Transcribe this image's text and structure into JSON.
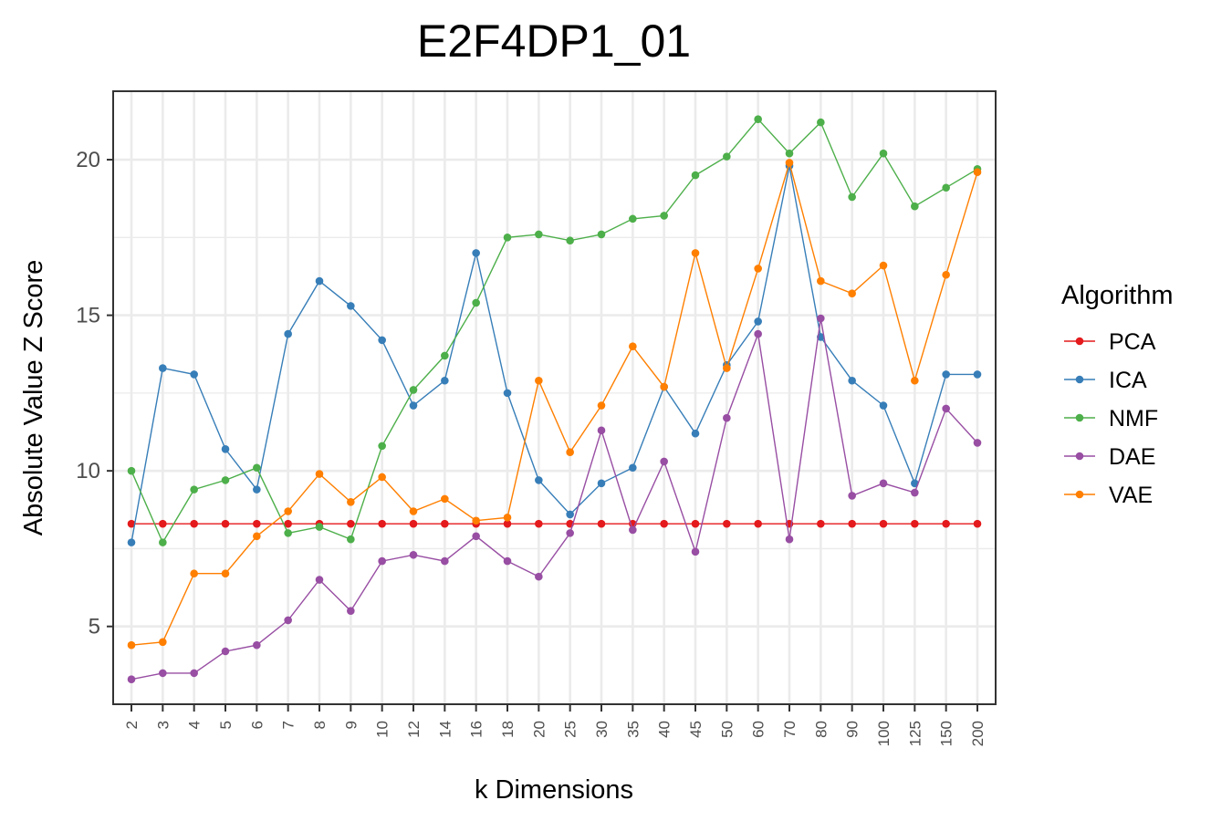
{
  "chart_data": {
    "type": "line",
    "title": "E2F4DP1_01",
    "xlabel": "k Dimensions",
    "ylabel": "Absolute Value Z Score",
    "categories": [
      "2",
      "3",
      "4",
      "5",
      "6",
      "7",
      "8",
      "9",
      "10",
      "12",
      "14",
      "16",
      "18",
      "20",
      "25",
      "30",
      "35",
      "40",
      "45",
      "50",
      "60",
      "70",
      "80",
      "90",
      "100",
      "125",
      "150",
      "200"
    ],
    "y_ticks": [
      5,
      10,
      15,
      20
    ],
    "ylim": [
      2.5,
      22.2
    ],
    "grid": true,
    "legend": {
      "title": "Algorithm",
      "placement": "right"
    },
    "series": [
      {
        "name": "PCA",
        "color": "#e41a1c",
        "values": [
          8.3,
          8.3,
          8.3,
          8.3,
          8.3,
          8.3,
          8.3,
          8.3,
          8.3,
          8.3,
          8.3,
          8.3,
          8.3,
          8.3,
          8.3,
          8.3,
          8.3,
          8.3,
          8.3,
          8.3,
          8.3,
          8.3,
          8.3,
          8.3,
          8.3,
          8.3,
          8.3,
          8.3
        ]
      },
      {
        "name": "ICA",
        "color": "#377eb8",
        "values": [
          7.7,
          13.3,
          13.1,
          10.7,
          9.4,
          14.4,
          16.1,
          15.3,
          14.2,
          12.1,
          12.9,
          17.0,
          12.5,
          9.7,
          8.6,
          9.6,
          10.1,
          12.7,
          11.2,
          13.4,
          14.8,
          19.8,
          14.3,
          12.9,
          12.1,
          9.6,
          13.1,
          13.1
        ]
      },
      {
        "name": "NMF",
        "color": "#4daf4a",
        "values": [
          10.0,
          7.7,
          9.4,
          9.7,
          10.1,
          8.0,
          8.2,
          7.8,
          10.8,
          12.6,
          13.7,
          15.4,
          17.5,
          17.6,
          17.4,
          17.6,
          18.1,
          18.2,
          19.5,
          20.1,
          21.3,
          20.2,
          21.2,
          18.8,
          20.2,
          18.5,
          19.1,
          19.7
        ]
      },
      {
        "name": "DAE",
        "color": "#984ea3",
        "values": [
          3.3,
          3.5,
          3.5,
          4.2,
          4.4,
          5.2,
          6.5,
          5.5,
          7.1,
          7.3,
          7.1,
          7.9,
          7.1,
          6.6,
          8.0,
          11.3,
          8.1,
          10.3,
          7.4,
          11.7,
          14.4,
          7.8,
          14.9,
          9.2,
          9.6,
          9.3,
          12.0,
          10.9
        ]
      },
      {
        "name": "VAE",
        "color": "#ff7f00",
        "values": [
          4.4,
          4.5,
          6.7,
          6.7,
          7.9,
          8.7,
          9.9,
          9.0,
          9.8,
          8.7,
          9.1,
          8.4,
          8.5,
          12.9,
          10.6,
          12.1,
          14.0,
          12.7,
          17.0,
          13.3,
          16.5,
          19.9,
          16.1,
          15.7,
          16.6,
          12.9,
          16.3,
          19.6
        ]
      }
    ]
  }
}
